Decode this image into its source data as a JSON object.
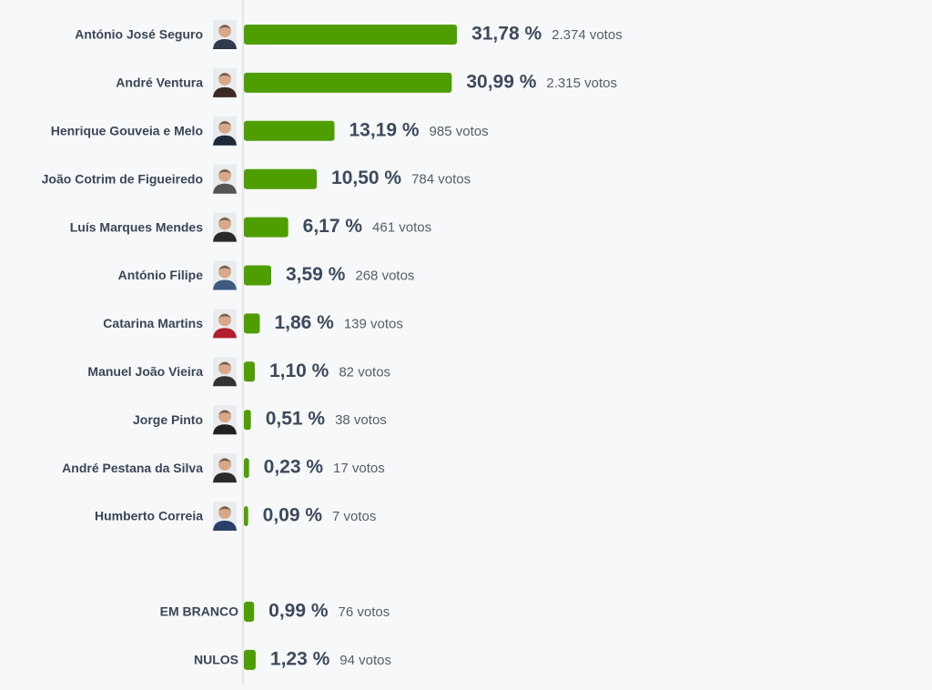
{
  "chart_data": [
    {
      "type": "bar",
      "orientation": "horizontal",
      "color": "#4f9e00",
      "photos": true,
      "categories": [
        "António José Seguro",
        "André Ventura",
        "Henrique Gouveia e Melo",
        "João Cotrim de Figueiredo",
        "Luís Marques Mendes",
        "António Filipe",
        "Catarina Martins",
        "Manuel João Vieira",
        "Jorge Pinto",
        "André Pestana da Silva",
        "Humberto Correia"
      ],
      "values": [
        31.78,
        30.99,
        13.19,
        10.5,
        6.17,
        3.59,
        1.86,
        1.1,
        0.51,
        0.23,
        0.09
      ],
      "value_labels": [
        "31,78 %",
        "30,99 %",
        "13,19 %",
        "10,50 %",
        "6,17 %",
        "3,59 %",
        "1,86 %",
        "1,10 %",
        "0,51 %",
        "0,23 %",
        "0,09 %"
      ],
      "vote_labels": [
        "2.374 votos",
        "2.315 votos",
        "985 votos",
        "784 votos",
        "461 votos",
        "268 votos",
        "139 votos",
        "82 votos",
        "38 votos",
        "17 votos",
        "7 votos"
      ]
    },
    {
      "type": "bar",
      "orientation": "horizontal",
      "color": "#4f9e00",
      "photos": false,
      "categories": [
        "EM BRANCO",
        "NULOS"
      ],
      "values": [
        0.99,
        1.23
      ],
      "value_labels": [
        "0,99 %",
        "1,23 %"
      ],
      "vote_labels": [
        "76 votos",
        "94 votos"
      ]
    }
  ]
}
